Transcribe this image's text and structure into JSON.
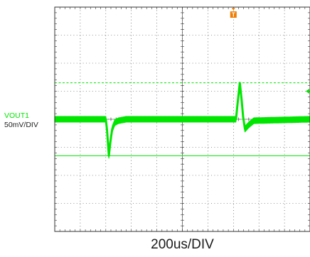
{
  "scope": {
    "channel": {
      "name": "VOUT1",
      "scale": "50mV/DIV",
      "color": "#00e600"
    },
    "timebase": "200us/DIV",
    "trigger_marker": "T",
    "trigger_color": "#f07d00",
    "grid_color": "#333333"
  },
  "chart_data": {
    "type": "line",
    "title": "",
    "xlabel": "200us/DIV",
    "ylabel": "50mV/DIV",
    "grid": true,
    "divisions": {
      "x": 10,
      "y": 8
    },
    "series": [
      {
        "name": "VOUT1",
        "ripple_band_mV": 10,
        "x_div": [
          0,
          2.0,
          2.05,
          2.12,
          2.18,
          2.25,
          2.35,
          2.5,
          2.8,
          7.1,
          7.15,
          7.25,
          7.32,
          7.38,
          7.45,
          7.6,
          7.8,
          10
        ],
        "y_div": [
          0,
          0,
          -0.4,
          -1.3,
          -0.8,
          -0.35,
          -0.12,
          -0.05,
          0,
          0,
          0.45,
          1.3,
          0.7,
          0.1,
          -0.35,
          -0.2,
          -0.05,
          0
        ]
      }
    ],
    "cursors_div": [
      1.3,
      -1.3
    ],
    "trigger_div": 7.0
  }
}
